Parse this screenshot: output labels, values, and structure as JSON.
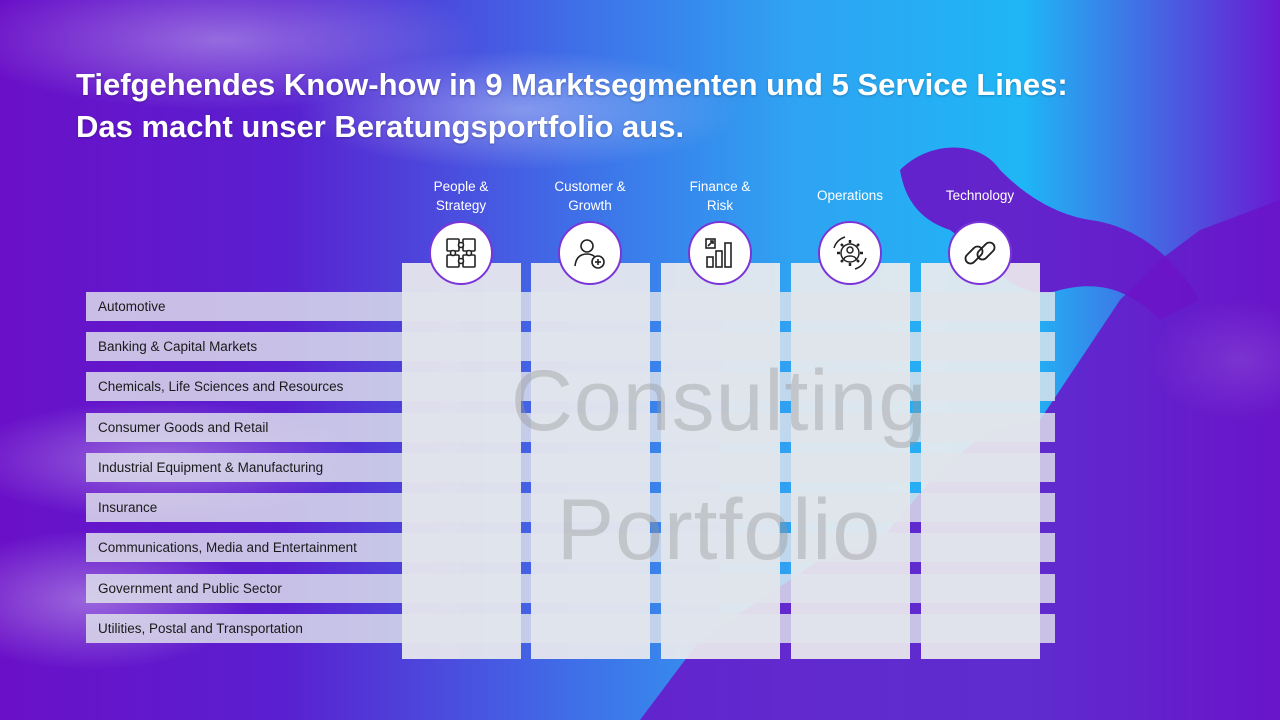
{
  "title": {
    "line1": "Tiefgehendes Know-how in 9 Marktsegmenten und 5 Service Lines:",
    "line2": "Das macht unser Beratungsportfolio aus."
  },
  "service_lines": [
    {
      "line1": "People &",
      "line2": "Strategy",
      "icon": "puzzle-hands-icon"
    },
    {
      "line1": "Customer &",
      "line2": "Growth",
      "icon": "user-add-icon"
    },
    {
      "line1": "Finance &",
      "line2": "Risk",
      "icon": "bar-chart-growth-icon"
    },
    {
      "line1": "Operations",
      "line2": "",
      "icon": "gear-cycle-icon"
    },
    {
      "line1": "Technology",
      "line2": "",
      "icon": "chain-link-icon"
    }
  ],
  "market_segments": [
    "Automotive",
    "Banking & Capital Markets",
    "Chemicals, Life Sciences and Resources",
    "Consumer Goods and Retail",
    "Industrial Equipment & Manufacturing",
    "Insurance",
    "Communications, Media and Entertainment",
    "Government and Public Sector",
    "Utilities, Postal and Transportation"
  ],
  "watermark": {
    "line1": "Consulting",
    "line2": "Portfolio"
  },
  "colors": {
    "accent": "#7a35d8",
    "grid_cyan": "#35c6f2",
    "grid_purple": "#6a1fd0"
  }
}
